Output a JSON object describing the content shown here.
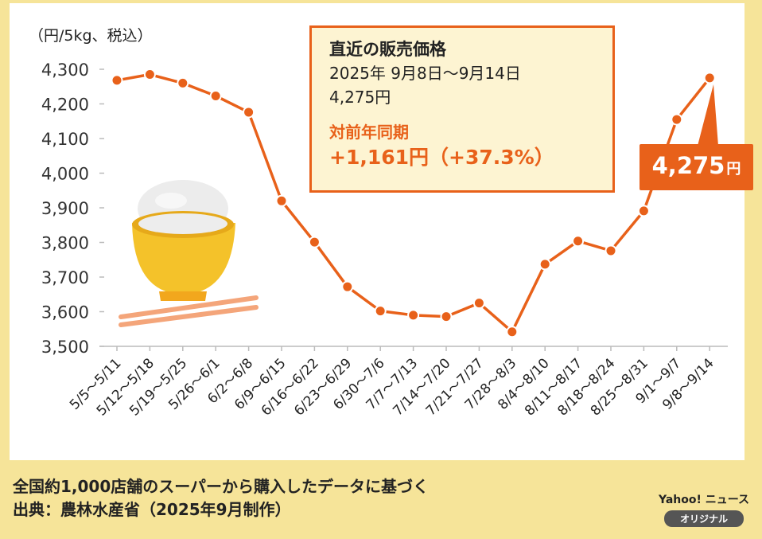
{
  "chart_data": {
    "type": "line",
    "unit_label": "（円/5kg、税込）",
    "ylim": [
      3500,
      4300
    ],
    "yticks": [
      4300,
      4200,
      4100,
      4000,
      3900,
      3800,
      3700,
      3600,
      3500
    ],
    "ytick_labels": [
      "4,300",
      "4,200",
      "4,100",
      "4,000",
      "3,900",
      "3,800",
      "3,700",
      "3,600",
      "3,500"
    ],
    "categories": [
      "5/5～5/11",
      "5/12～5/18",
      "5/19～5/25",
      "5/26～6/1",
      "6/2～6/8",
      "6/9～6/15",
      "6/16～6/22",
      "6/23～6/29",
      "6/30～7/6",
      "7/7～7/13",
      "7/14～7/20",
      "7/21～7/27",
      "7/28～8/3",
      "8/4～8/10",
      "8/11～8/17",
      "8/18～8/24",
      "8/25～8/31",
      "9/1～9/7",
      "9/8～9/14"
    ],
    "values": [
      4268,
      4285,
      4260,
      4223,
      4176,
      3920,
      3801,
      3672,
      3602,
      3590,
      3586,
      3625,
      3542,
      3737,
      3804,
      3776,
      3891,
      4155,
      4275
    ],
    "line_color": "#e8611a",
    "grid": false
  },
  "callout": {
    "title": "直近の販売価格",
    "period": "2025年 9月8日～9月14日",
    "price": "4,275円",
    "yoy_label": "対前年同期",
    "yoy_value": "+1,161円（+37.3%）"
  },
  "latest_badge": {
    "value": "4,275",
    "unit": "円"
  },
  "footer": {
    "note": "全国約1,000店舗のスーパーから購入したデータに基づく",
    "source": "出典：農林水産省（2025年9月制作）"
  },
  "brand": {
    "logo": "Yahoo! ニュース",
    "tag": "オリジナル"
  },
  "colors": {
    "background": "#f6e499",
    "accent": "#e8611a",
    "callout_bg": "#fdf4d2"
  },
  "illustration": "rice-bowl-with-chopsticks-icon"
}
